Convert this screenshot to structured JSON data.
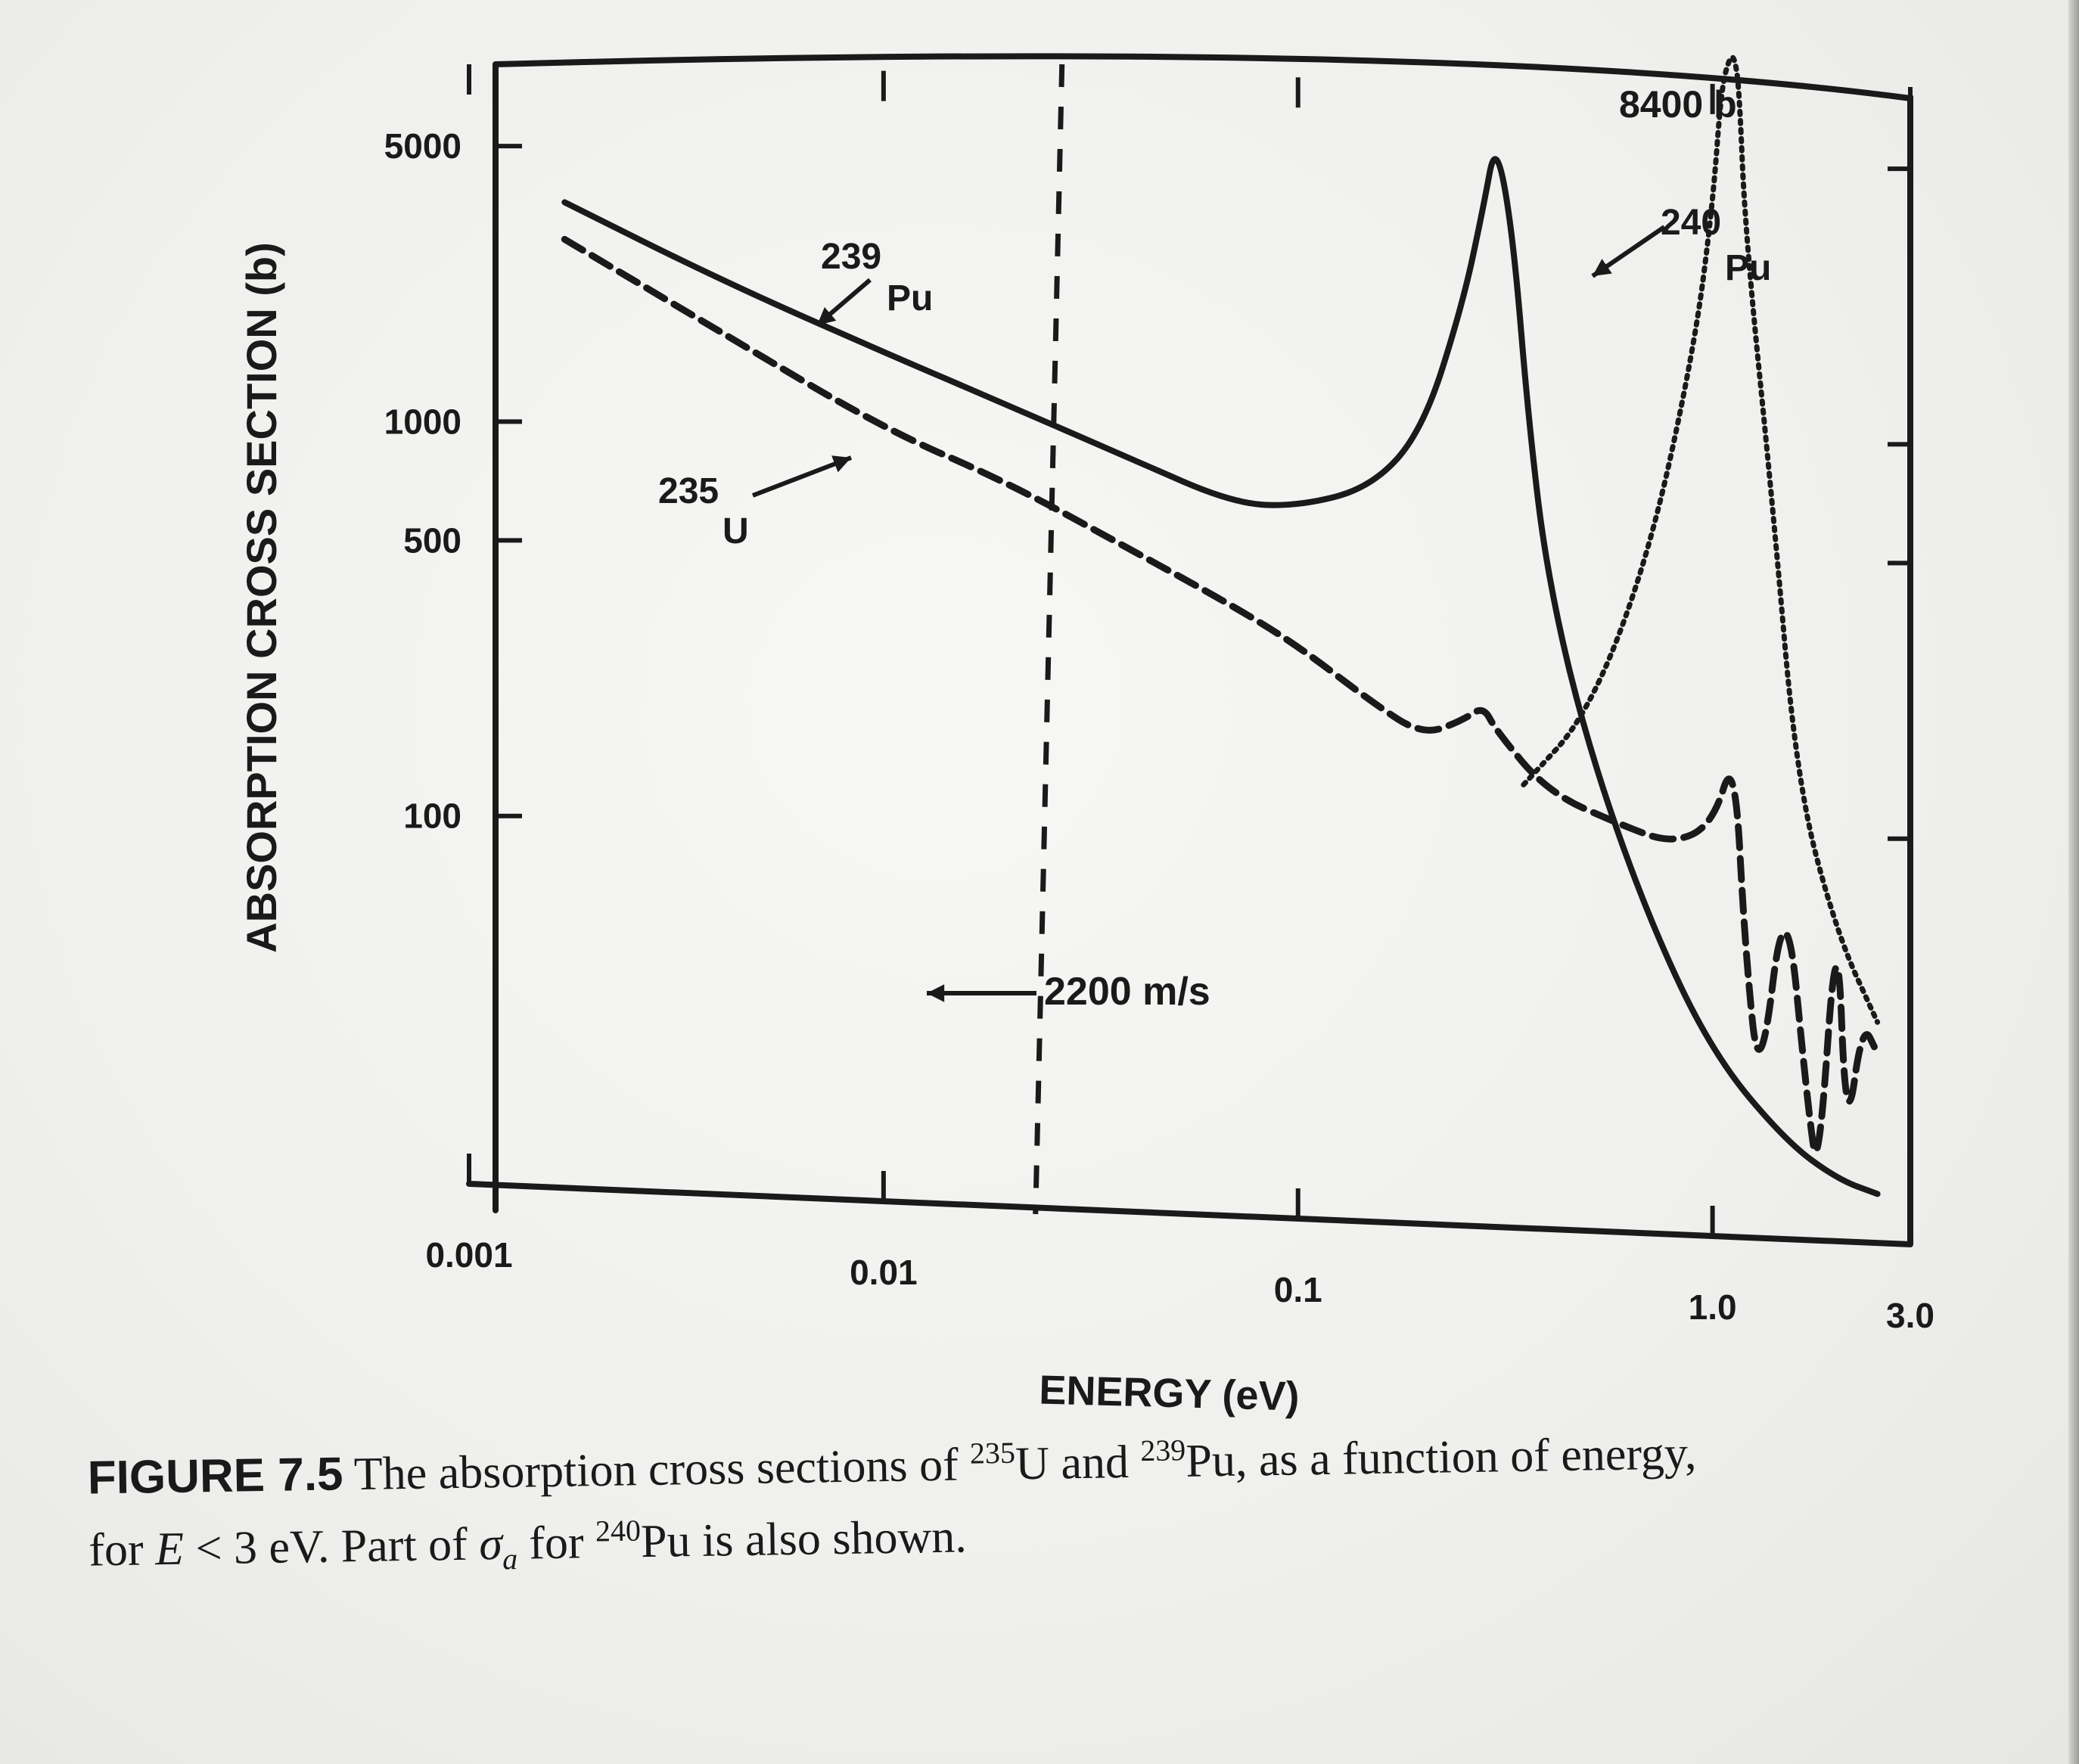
{
  "chart_data": {
    "type": "line",
    "xlabel": "ENERGY (eV)",
    "ylabel": "ABSORPTION CROSS SECTION (b)",
    "x_scale": "log",
    "y_scale": "log",
    "xlim": [
      0.001,
      3.0
    ],
    "ylim": [
      10,
      9000
    ],
    "x_tick_labels": [
      "0.001",
      "0.01",
      "0.1",
      "1.0",
      "3.0"
    ],
    "y_tick_labels": [
      "5000",
      "1000",
      "500",
      "100"
    ],
    "series": [
      {
        "name": "239 Pu",
        "style": "solid",
        "x": [
          0.0017,
          0.004,
          0.01,
          0.02,
          0.04,
          0.07,
          0.1,
          0.15,
          0.2,
          0.25,
          0.28,
          0.3,
          0.33,
          0.36,
          0.4,
          0.5,
          0.7,
          1.0,
          1.5,
          2.0,
          2.5
        ],
        "y": [
          3600,
          2300,
          1500,
          1100,
          800,
          620,
          610,
          680,
          950,
          2000,
          3500,
          5200,
          3000,
          1000,
          400,
          150,
          55,
          25,
          15,
          12,
          11
        ]
      },
      {
        "name": "235 U",
        "style": "dashed",
        "x": [
          0.0017,
          0.004,
          0.01,
          0.02,
          0.04,
          0.07,
          0.1,
          0.15,
          0.2,
          0.25,
          0.28,
          0.3,
          0.4,
          0.6,
          0.8,
          1.0,
          1.13,
          1.2,
          1.3,
          1.5,
          1.7,
          1.8,
          2.0,
          2.1,
          2.3,
          2.5
        ],
        "y": [
          2900,
          1700,
          960,
          700,
          470,
          340,
          270,
          195,
          160,
          175,
          190,
          165,
          115,
          95,
          85,
          95,
          145,
          45,
          20,
          70,
          18,
          12,
          60,
          15,
          30,
          25
        ]
      },
      {
        "name": "240 Pu",
        "style": "dotted",
        "x": [
          0.35,
          0.5,
          0.7,
          0.9,
          1.0,
          1.05,
          1.1,
          1.13,
          1.16,
          1.2,
          1.4,
          1.6,
          2.0,
          2.5
        ],
        "y": [
          120,
          180,
          450,
          1500,
          3500,
          7000,
          8400,
          8400,
          7000,
          3000,
          600,
          120,
          50,
          30
        ]
      }
    ],
    "annotations": [
      {
        "text": "2200 m/s",
        "x": 0.0253,
        "note": "vertical dashed line"
      },
      {
        "text": "8400 b",
        "x": 1.13,
        "y": 8400
      }
    ]
  },
  "labels": {
    "pu239_mass": "239",
    "pu239_sym": "Pu",
    "u235_mass": "235",
    "u235_sym": "U",
    "pu240_mass": "240",
    "pu240_sym": "Pu",
    "peak": "8400 b",
    "speed": "2200 m/s"
  },
  "caption": {
    "figure_label": "FIGURE 7.5",
    "part1": "The absorption cross sections of ",
    "sup_u": "235",
    "part2": "U and ",
    "sup_pu": "239",
    "part3": "Pu, as a function of energy,",
    "part4": "for ",
    "e_var": "E",
    "part5": " < 3 eV. Part of ",
    "sigma": "σ",
    "sigma_sub": "a",
    "part6": " for ",
    "sup_pu240": "240",
    "part7": "Pu is also shown."
  },
  "colors": {
    "ink": "#1a1a1a",
    "paper": "#f1f1ef"
  }
}
